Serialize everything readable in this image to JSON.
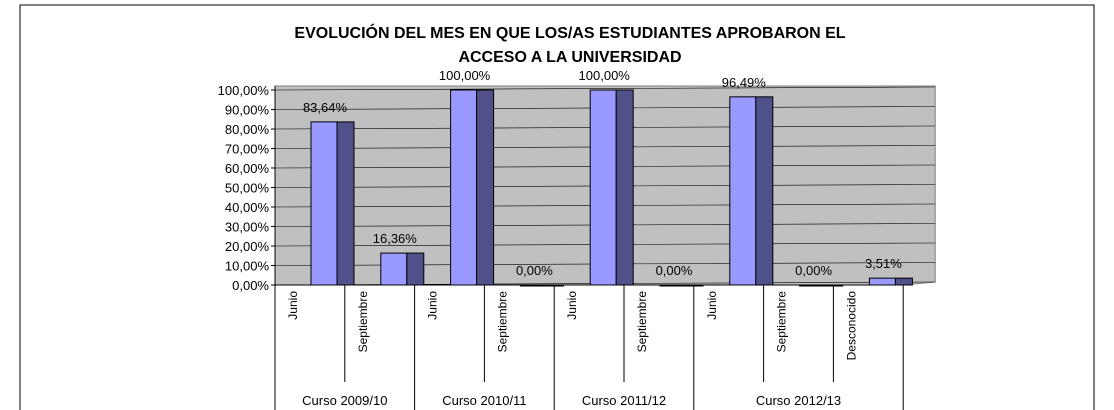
{
  "chart_data": {
    "type": "bar3d",
    "title": "EVOLUCIÓN DEL MES EN QUE LOS/AS ESTUDIANTES APROBARON EL",
    "subtitle": "ACCESO A LA UNIVERSIDAD",
    "categories": [
      "Junio",
      "Septiembre",
      "Junio",
      "Septiembre",
      "Junio",
      "Septiembre",
      "Junio",
      "Septiembre",
      "Desconocido"
    ],
    "groups": [
      {
        "name": "Curso 2009/10",
        "count": 2
      },
      {
        "name": "Curso 2010/11",
        "count": 2
      },
      {
        "name": "Curso 2011/12",
        "count": 2
      },
      {
        "name": "Curso 2012/13",
        "count": 3
      }
    ],
    "values": [
      83.64,
      16.36,
      100,
      0,
      100,
      0,
      96.49,
      0,
      3.51
    ],
    "value_labels": [
      "83,64%",
      "16,36%",
      "100,00%",
      "0,00%",
      "100,00%",
      "0,00%",
      "96,49%",
      "0,00%",
      "3,51%"
    ],
    "color": "#9999ff",
    "side_color": "#50508a",
    "ylim": [
      0,
      100
    ],
    "yticks": [
      {
        "value": 0,
        "label": "0,00%"
      },
      {
        "value": 10,
        "label": "10,00%"
      },
      {
        "value": 20,
        "label": "20,00%"
      },
      {
        "value": 30,
        "label": "30,00%"
      },
      {
        "value": 40,
        "label": "40,00%"
      },
      {
        "value": 50,
        "label": "50,00%"
      },
      {
        "value": 60,
        "label": "60,00%"
      },
      {
        "value": 70,
        "label": "70,00%"
      },
      {
        "value": 80,
        "label": "80,00%"
      },
      {
        "value": 90,
        "label": "90,00%"
      },
      {
        "value": 100,
        "label": "100,00%"
      }
    ],
    "grid": true
  }
}
